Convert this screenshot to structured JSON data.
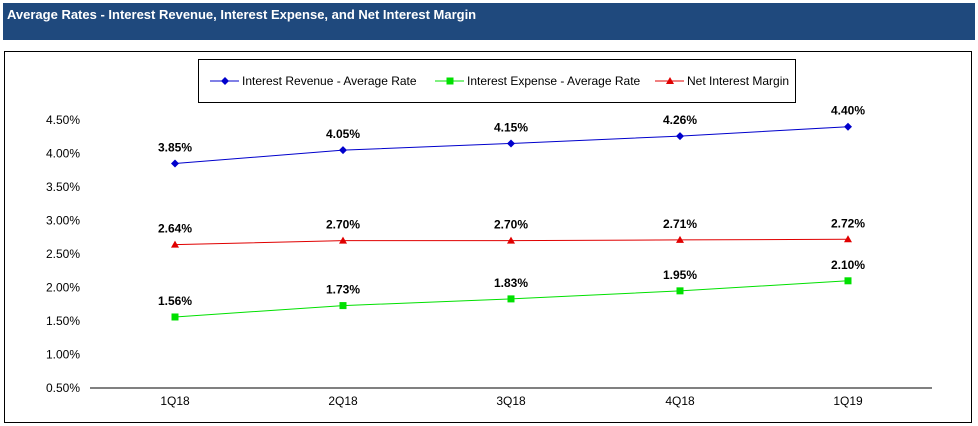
{
  "header": {
    "title": "Average Rates - Interest Revenue, Interest Expense, and Net Interest Margin",
    "background": "#1F497D"
  },
  "chart_data": {
    "type": "line",
    "title": "Average Rates - Interest Revenue, Interest Expense, and Net Interest Margin",
    "categories": [
      "1Q18",
      "2Q18",
      "3Q18",
      "4Q18",
      "1Q19"
    ],
    "ylim": [
      0.5,
      4.5
    ],
    "yticks": [
      "0.50%",
      "1.00%",
      "1.50%",
      "2.00%",
      "2.50%",
      "3.00%",
      "3.50%",
      "4.00%",
      "4.50%"
    ],
    "grid": false,
    "legend_position": "top",
    "series": [
      {
        "name": "Interest Revenue - Average Rate",
        "color": "#0000CC",
        "marker": "diamond",
        "values": [
          3.85,
          4.05,
          4.15,
          4.26,
          4.4
        ],
        "labels": [
          "3.85%",
          "4.05%",
          "4.15%",
          "4.26%",
          "4.40%"
        ]
      },
      {
        "name": "Interest Expense - Average Rate",
        "color": "#00E000",
        "marker": "square",
        "values": [
          1.56,
          1.73,
          1.83,
          1.95,
          2.1
        ],
        "labels": [
          "1.56%",
          "1.73%",
          "1.83%",
          "1.95%",
          "2.10%"
        ]
      },
      {
        "name": "Net Interest Margin",
        "color": "#E00000",
        "marker": "triangle",
        "values": [
          2.64,
          2.7,
          2.7,
          2.71,
          2.72
        ],
        "labels": [
          "2.64%",
          "2.70%",
          "2.70%",
          "2.71%",
          "2.72%"
        ]
      }
    ]
  }
}
